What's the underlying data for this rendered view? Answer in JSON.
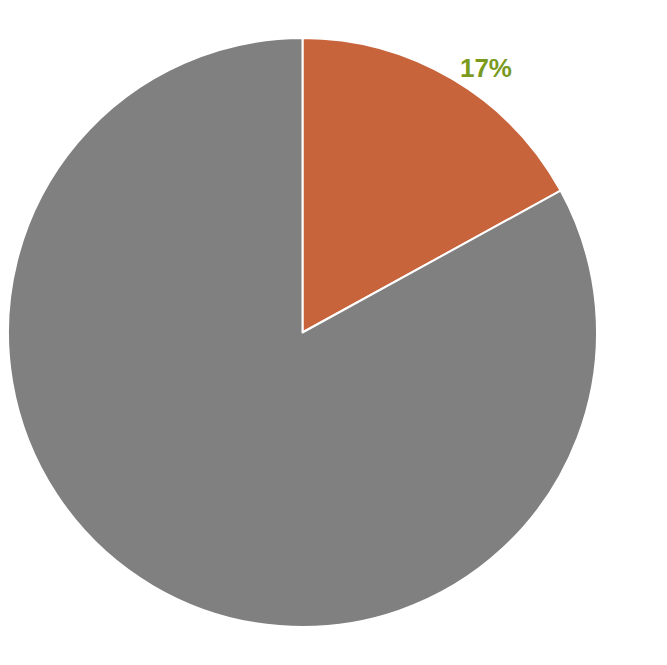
{
  "chart_data": {
    "type": "pie",
    "values": [
      17,
      83
    ],
    "value_labels": [
      "17%",
      null
    ],
    "colors": [
      "#c8643c",
      "#808080"
    ],
    "data_labels": true
  }
}
